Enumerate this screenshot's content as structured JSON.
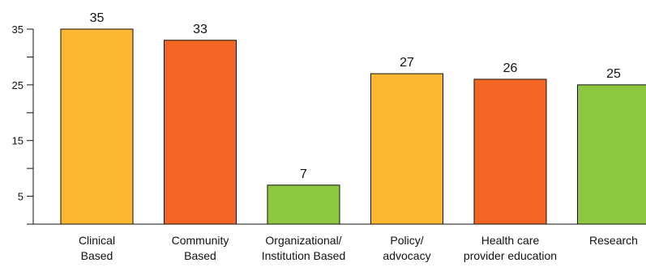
{
  "chart_data": {
    "type": "bar",
    "categories": [
      [
        "Clinical",
        "Based"
      ],
      [
        "Community",
        "Based"
      ],
      [
        "Organizational/",
        "Institution Based"
      ],
      [
        "Policy/",
        "advocacy"
      ],
      [
        "Health care",
        "provider education"
      ],
      [
        "Research"
      ]
    ],
    "values": [
      35,
      33,
      7,
      27,
      26,
      25
    ],
    "value_labels": [
      "35",
      "33",
      "7",
      "27",
      "26",
      "25"
    ],
    "bar_colors": [
      "#FBB830",
      "#F26522",
      "#8DC63F",
      "#FBB830",
      "#F26522",
      "#8DC63F"
    ],
    "yticks": [
      5,
      15,
      25,
      35
    ],
    "minor_yticks": [
      0,
      10,
      20,
      30
    ],
    "ylim": [
      0,
      35
    ],
    "grid": false,
    "legend": "none",
    "title": "",
    "xlabel": "",
    "ylabel": ""
  }
}
